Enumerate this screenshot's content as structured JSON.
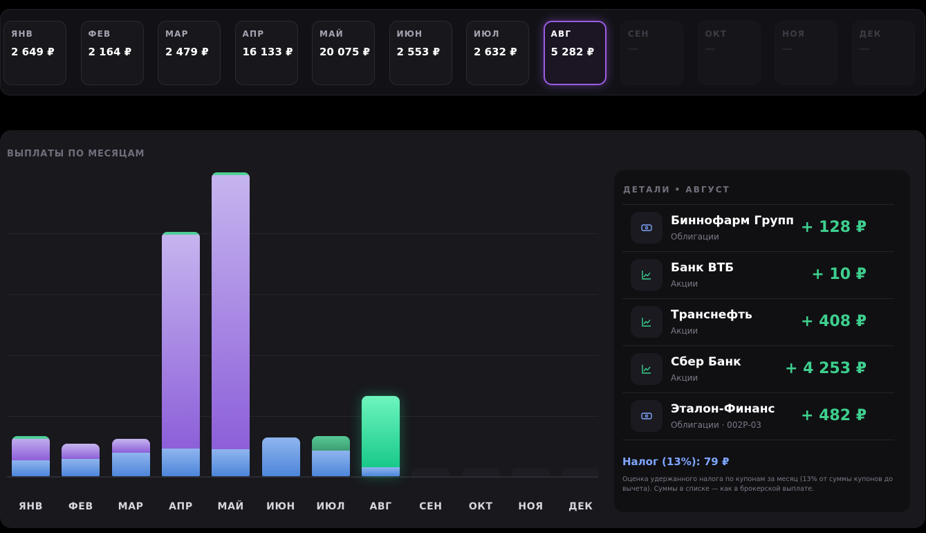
{
  "months": [
    {
      "label": "ЯНВ",
      "value": "2 649 ₽",
      "state": "normal"
    },
    {
      "label": "ФЕВ",
      "value": "2 164 ₽",
      "state": "normal"
    },
    {
      "label": "МАР",
      "value": "2 479 ₽",
      "state": "normal"
    },
    {
      "label": "АПР",
      "value": "16 133 ₽",
      "state": "normal"
    },
    {
      "label": "МАЙ",
      "value": "20 075 ₽",
      "state": "normal"
    },
    {
      "label": "ИЮН",
      "value": "2 553 ₽",
      "state": "normal"
    },
    {
      "label": "ИЮЛ",
      "value": "2 632 ₽",
      "state": "normal"
    },
    {
      "label": "АВГ",
      "value": "5 282 ₽",
      "state": "selected"
    },
    {
      "label": "СЕН",
      "value": "—",
      "state": "empty"
    },
    {
      "label": "ОКТ",
      "value": "—",
      "state": "empty"
    },
    {
      "label": "НОЯ",
      "value": "—",
      "state": "empty"
    },
    {
      "label": "ДЕК",
      "value": "—",
      "state": "empty"
    }
  ],
  "chart": {
    "title": "ВЫПЛАТЫ ПО МЕСЯЦАМ"
  },
  "chart_data": {
    "type": "bar",
    "stacked": true,
    "categories": [
      "ЯНВ",
      "ФЕВ",
      "МАР",
      "АПР",
      "МАЙ",
      "ИЮН",
      "ИЮЛ",
      "АВГ",
      "СЕН",
      "ОКТ",
      "НОЯ",
      "ДЕК"
    ],
    "totals": [
      2649,
      2164,
      2479,
      16133,
      20075,
      2553,
      2632,
      5282,
      0,
      0,
      0,
      0
    ],
    "series": [
      {
        "values": [
          1050,
          1140,
          1565,
          1840,
          1790,
          2553,
          1710,
          610,
          0,
          0,
          0,
          0
        ],
        "color": "#6f9fe6"
      },
      {
        "values": [
          1430,
          1024,
          914,
          14113,
          18105,
          0,
          0,
          4672,
          0,
          0,
          0,
          0
        ],
        "color": "#a98be6"
      },
      {
        "values": [
          169,
          0,
          0,
          180,
          180,
          0,
          922,
          0,
          0,
          0,
          0,
          0
        ],
        "color": "#4fcf98"
      }
    ],
    "selected_category": "АВГ",
    "selected_color": "#2ee6a0",
    "ylim": [
      0,
      20075
    ],
    "grid": true,
    "legend": "none"
  },
  "details": {
    "title": "ДЕТАЛИ • АВГУСТ",
    "items": [
      {
        "name": "Биннофарм Групп",
        "sub": "Облигации",
        "amount": "+ 128 ₽",
        "icon": "bond-icon"
      },
      {
        "name": "Банк ВТБ",
        "sub": "Акции",
        "amount": "+ 10 ₽",
        "icon": "chart-icon"
      },
      {
        "name": "Транснефть",
        "sub": "Акции",
        "amount": "+ 408 ₽",
        "icon": "chart-icon"
      },
      {
        "name": "Сбер Банк",
        "sub": "Акции",
        "amount": "+ 4 253 ₽",
        "icon": "chart-icon"
      },
      {
        "name": "Эталон-Финанс",
        "sub": "Облигации · 002Р-03",
        "amount": "+ 482 ₽",
        "icon": "bond-icon"
      }
    ],
    "tax": "Налог (13%): 79 ₽",
    "tax_note": "Оценка удержанного налога по купонам за месяц (13% от суммы купонов до вычета). Суммы в списке — как в брокерской выплате."
  },
  "colors": {
    "accent": "#9b5de5",
    "positive": "#3ecf8e",
    "tax": "#7fa6ff"
  }
}
